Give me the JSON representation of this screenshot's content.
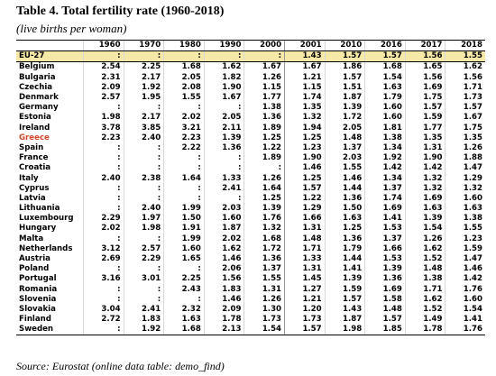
{
  "header": {
    "title": "Table 4. Total fertility rate (1960-2018)",
    "subtitle": "(live births per woman)"
  },
  "table": {
    "columns": [
      "1960",
      "1970",
      "1980",
      "1990",
      "2000",
      "2001",
      "2010",
      "2016",
      "2017",
      "2018"
    ],
    "rows": [
      [
        "EU-27",
        ":",
        ":",
        ":",
        ":",
        ":",
        "1.43",
        "1.57",
        "1.57",
        "1.56",
        "1.55"
      ],
      [
        "Belgium",
        "2.54",
        "2.25",
        "1.68",
        "1.62",
        "1.67",
        "1.67",
        "1.86",
        "1.68",
        "1.65",
        "1.62"
      ],
      [
        "Bulgaria",
        "2.31",
        "2.17",
        "2.05",
        "1.82",
        "1.26",
        "1.21",
        "1.57",
        "1.54",
        "1.56",
        "1.56"
      ],
      [
        "Czechia",
        "2.09",
        "1.92",
        "2.08",
        "1.90",
        "1.15",
        "1.15",
        "1.51",
        "1.63",
        "1.69",
        "1.71"
      ],
      [
        "Denmark",
        "2.57",
        "1.95",
        "1.55",
        "1.67",
        "1.77",
        "1.74",
        "1.87",
        "1.79",
        "1.75",
        "1.73"
      ],
      [
        "Germany",
        ":",
        ":",
        ":",
        ":",
        "1.38",
        "1.35",
        "1.39",
        "1.60",
        "1.57",
        "1.57"
      ],
      [
        "Estonia",
        "1.98",
        "2.17",
        "2.02",
        "2.05",
        "1.36",
        "1.32",
        "1.72",
        "1.60",
        "1.59",
        "1.67"
      ],
      [
        "Ireland",
        "3.78",
        "3.85",
        "3.21",
        "2.11",
        "1.89",
        "1.94",
        "2.05",
        "1.81",
        "1.77",
        "1.75"
      ],
      [
        "Greece",
        "2.23",
        "2.40",
        "2.23",
        "1.39",
        "1.25",
        "1.25",
        "1.48",
        "1.38",
        "1.35",
        "1.35"
      ],
      [
        "Spain",
        ":",
        ":",
        "2.22",
        "1.36",
        "1.22",
        "1.23",
        "1.37",
        "1.34",
        "1.31",
        "1.26"
      ],
      [
        "France",
        ":",
        ":",
        ":",
        ":",
        "1.89",
        "1.90",
        "2.03",
        "1.92",
        "1.90",
        "1.88"
      ],
      [
        "Croatia",
        ":",
        ":",
        ":",
        ":",
        ":",
        "1.46",
        "1.55",
        "1.42",
        "1.42",
        "1.47"
      ],
      [
        "Italy",
        "2.40",
        "2.38",
        "1.64",
        "1.33",
        "1.26",
        "1.25",
        "1.46",
        "1.34",
        "1.32",
        "1.29"
      ],
      [
        "Cyprus",
        ":",
        ":",
        ":",
        "2.41",
        "1.64",
        "1.57",
        "1.44",
        "1.37",
        "1.32",
        "1.32"
      ],
      [
        "Latvia",
        ":",
        ":",
        ":",
        ":",
        "1.25",
        "1.22",
        "1.36",
        "1.74",
        "1.69",
        "1.60"
      ],
      [
        "Lithuania",
        ":",
        "2.40",
        "1.99",
        "2.03",
        "1.39",
        "1.29",
        "1.50",
        "1.69",
        "1.63",
        "1.63"
      ],
      [
        "Luxembourg",
        "2.29",
        "1.97",
        "1.50",
        "1.60",
        "1.76",
        "1.66",
        "1.63",
        "1.41",
        "1.39",
        "1.38"
      ],
      [
        "Hungary",
        "2.02",
        "1.98",
        "1.91",
        "1.87",
        "1.32",
        "1.31",
        "1.25",
        "1.53",
        "1.54",
        "1.55"
      ],
      [
        "Malta",
        ":",
        ":",
        "1.99",
        "2.02",
        "1.68",
        "1.48",
        "1.36",
        "1.37",
        "1.26",
        "1.23"
      ],
      [
        "Netherlands",
        "3.12",
        "2.57",
        "1.60",
        "1.62",
        "1.72",
        "1.71",
        "1.79",
        "1.66",
        "1.62",
        "1.59"
      ],
      [
        "Austria",
        "2.69",
        "2.29",
        "1.65",
        "1.46",
        "1.36",
        "1.33",
        "1.44",
        "1.53",
        "1.52",
        "1.47"
      ],
      [
        "Poland",
        ":",
        ":",
        ":",
        "2.06",
        "1.37",
        "1.31",
        "1.41",
        "1.39",
        "1.48",
        "1.46"
      ],
      [
        "Portugal",
        "3.16",
        "3.01",
        "2.25",
        "1.56",
        "1.55",
        "1.45",
        "1.39",
        "1.36",
        "1.38",
        "1.42"
      ],
      [
        "Romania",
        ":",
        ":",
        "2.43",
        "1.83",
        "1.31",
        "1.27",
        "1.59",
        "1.69",
        "1.71",
        "1.76"
      ],
      [
        "Slovenia",
        ":",
        ":",
        ":",
        "1.46",
        "1.26",
        "1.21",
        "1.57",
        "1.58",
        "1.62",
        "1.60"
      ],
      [
        "Slovakia",
        "3.04",
        "2.41",
        "2.32",
        "2.09",
        "1.30",
        "1.20",
        "1.43",
        "1.48",
        "1.52",
        "1.54"
      ],
      [
        "Finland",
        "2.72",
        "1.83",
        "1.63",
        "1.78",
        "1.73",
        "1.73",
        "1.87",
        "1.57",
        "1.49",
        "1.41"
      ],
      [
        "Sweden",
        ":",
        "1.92",
        "1.68",
        "2.13",
        "1.54",
        "1.57",
        "1.98",
        "1.85",
        "1.78",
        "1.76"
      ]
    ]
  },
  "footer": {
    "source": "Source: Eurostat (online data table: demo_find)"
  }
}
